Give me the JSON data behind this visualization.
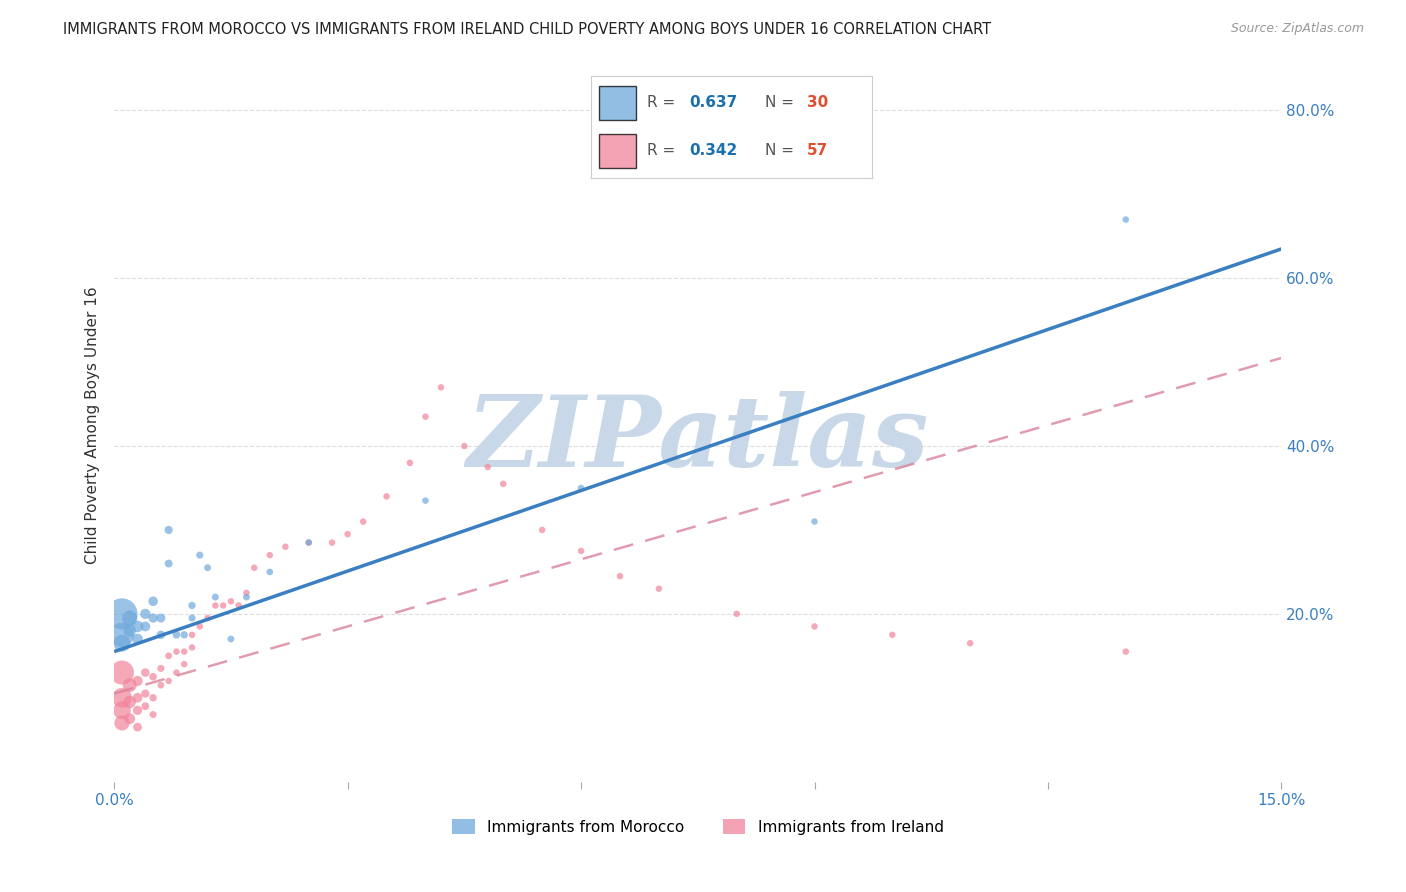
{
  "title": "IMMIGRANTS FROM MOROCCO VS IMMIGRANTS FROM IRELAND CHILD POVERTY AMONG BOYS UNDER 16 CORRELATION CHART",
  "source": "Source: ZipAtlas.com",
  "ylabel": "Child Poverty Among Boys Under 16",
  "xlim": [
    0.0,
    0.15
  ],
  "ylim": [
    0.0,
    0.85
  ],
  "xticks": [
    0.0,
    0.03,
    0.06,
    0.09,
    0.12,
    0.15
  ],
  "xtick_labels": [
    "0.0%",
    "",
    "",
    "",
    "",
    "15.0%"
  ],
  "ytick_labels_right": [
    "20.0%",
    "40.0%",
    "60.0%",
    "80.0%"
  ],
  "yticks_right": [
    0.2,
    0.4,
    0.6,
    0.8
  ],
  "morocco_color": "#6EA8DC",
  "ireland_color": "#F0849A",
  "legend_R_color": "#1a6faf",
  "legend_N_color": "#e05030",
  "watermark": "ZIPatlas",
  "watermark_color": "#c8d8e8",
  "morocco_x": [
    0.001,
    0.001,
    0.001,
    0.002,
    0.002,
    0.003,
    0.003,
    0.004,
    0.004,
    0.005,
    0.005,
    0.006,
    0.006,
    0.007,
    0.007,
    0.008,
    0.009,
    0.01,
    0.01,
    0.011,
    0.012,
    0.013,
    0.015,
    0.017,
    0.02,
    0.025,
    0.04,
    0.06,
    0.09,
    0.13
  ],
  "morocco_y": [
    0.2,
    0.175,
    0.165,
    0.195,
    0.18,
    0.185,
    0.17,
    0.2,
    0.185,
    0.215,
    0.195,
    0.195,
    0.175,
    0.3,
    0.26,
    0.175,
    0.175,
    0.21,
    0.195,
    0.27,
    0.255,
    0.22,
    0.17,
    0.22,
    0.25,
    0.285,
    0.335,
    0.35,
    0.31,
    0.67
  ],
  "morocco_sizes": [
    500,
    300,
    150,
    120,
    80,
    70,
    60,
    55,
    50,
    48,
    45,
    42,
    38,
    35,
    32,
    30,
    28,
    28,
    26,
    26,
    25,
    25,
    24,
    24,
    23,
    23,
    22,
    22,
    22,
    22
  ],
  "ireland_x": [
    0.001,
    0.001,
    0.001,
    0.001,
    0.002,
    0.002,
    0.002,
    0.003,
    0.003,
    0.003,
    0.003,
    0.004,
    0.004,
    0.004,
    0.005,
    0.005,
    0.005,
    0.006,
    0.006,
    0.007,
    0.007,
    0.008,
    0.008,
    0.009,
    0.009,
    0.01,
    0.01,
    0.011,
    0.012,
    0.013,
    0.014,
    0.015,
    0.016,
    0.017,
    0.018,
    0.02,
    0.022,
    0.025,
    0.028,
    0.03,
    0.032,
    0.035,
    0.038,
    0.04,
    0.042,
    0.045,
    0.048,
    0.05,
    0.055,
    0.06,
    0.065,
    0.07,
    0.08,
    0.09,
    0.1,
    0.11,
    0.13
  ],
  "ireland_y": [
    0.13,
    0.1,
    0.085,
    0.07,
    0.115,
    0.095,
    0.075,
    0.12,
    0.1,
    0.085,
    0.065,
    0.13,
    0.105,
    0.09,
    0.125,
    0.1,
    0.08,
    0.135,
    0.115,
    0.15,
    0.12,
    0.155,
    0.13,
    0.155,
    0.14,
    0.175,
    0.16,
    0.185,
    0.195,
    0.21,
    0.21,
    0.215,
    0.21,
    0.225,
    0.255,
    0.27,
    0.28,
    0.285,
    0.285,
    0.295,
    0.31,
    0.34,
    0.38,
    0.435,
    0.47,
    0.4,
    0.375,
    0.355,
    0.3,
    0.275,
    0.245,
    0.23,
    0.2,
    0.185,
    0.175,
    0.165,
    0.155
  ],
  "ireland_sizes": [
    300,
    200,
    160,
    120,
    100,
    80,
    60,
    55,
    50,
    45,
    40,
    38,
    35,
    32,
    30,
    28,
    26,
    26,
    24,
    24,
    22,
    22,
    22,
    22,
    22,
    22,
    22,
    22,
    22,
    22,
    22,
    22,
    22,
    22,
    22,
    22,
    22,
    22,
    22,
    22,
    22,
    22,
    22,
    22,
    22,
    22,
    22,
    22,
    22,
    22,
    22,
    22,
    22,
    22,
    22,
    22,
    22
  ],
  "morocco_line_x": [
    0.0,
    0.15
  ],
  "morocco_line_y": [
    0.155,
    0.635
  ],
  "ireland_line_x": [
    0.0,
    0.15
  ],
  "ireland_line_y": [
    0.105,
    0.505
  ],
  "background_color": "#ffffff",
  "grid_color": "#dddddd"
}
